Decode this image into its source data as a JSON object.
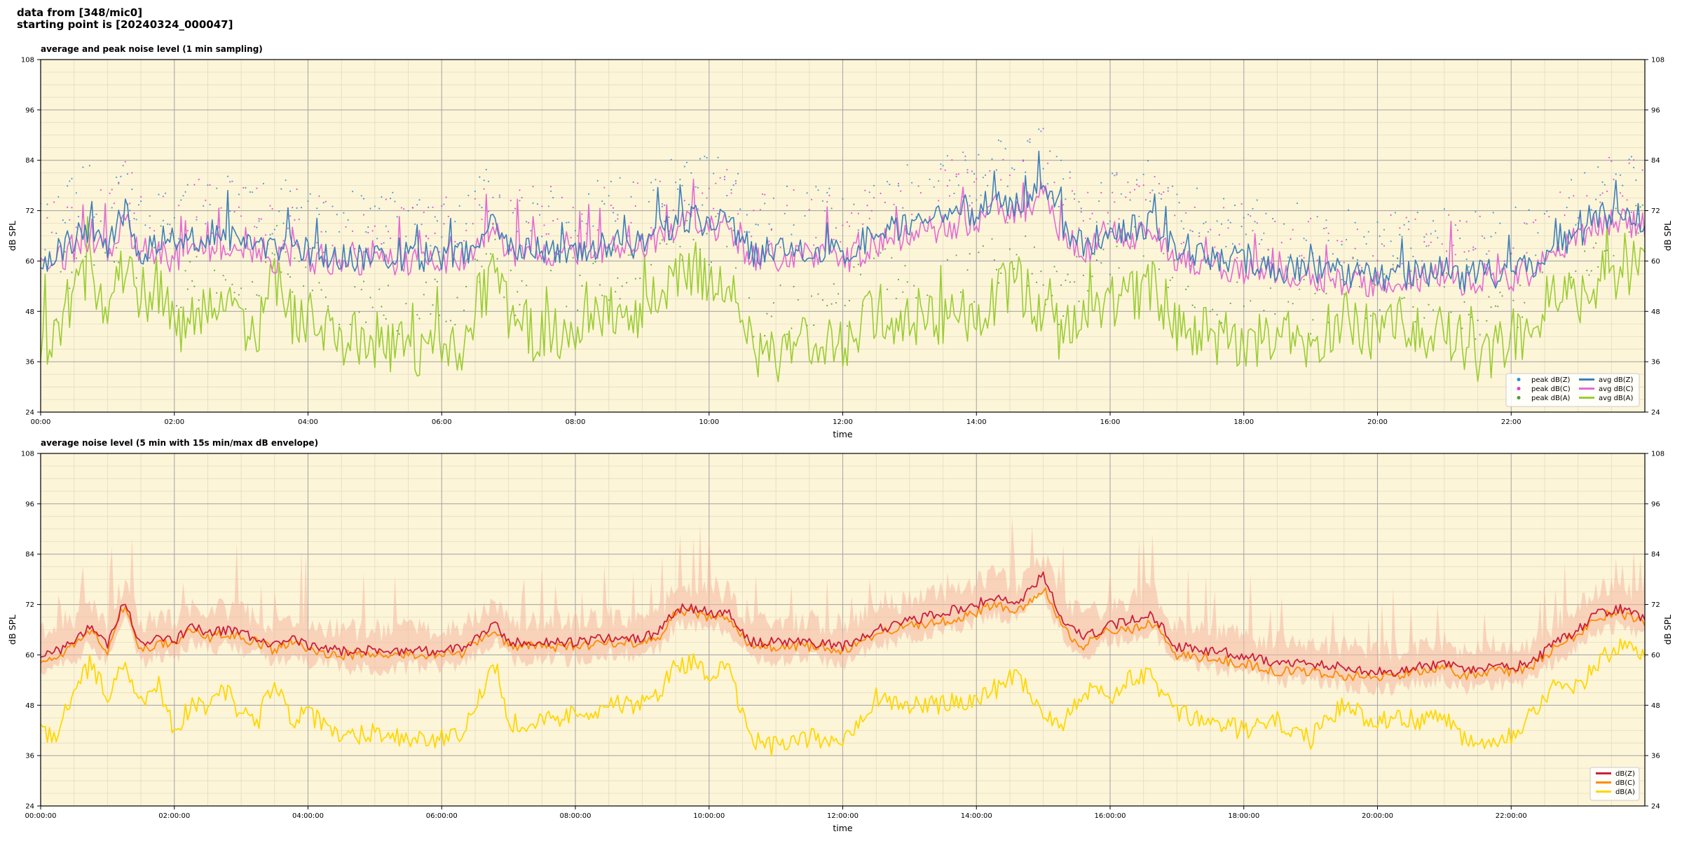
{
  "header": {
    "line1": "data from [348/mic0]",
    "line2": "starting point is [20240324_000047]"
  },
  "chart_data": [
    {
      "type": "line",
      "title": "average and peak noise level (1 min sampling)",
      "xlabel": "time",
      "ylabel": "dB SPL",
      "ylim": [
        24,
        108
      ],
      "xlim_hours": [
        0,
        24
      ],
      "yticks": [
        24,
        36,
        48,
        60,
        72,
        84,
        96,
        108
      ],
      "xticks": [
        "00:00",
        "02:00",
        "04:00",
        "06:00",
        "08:00",
        "10:00",
        "12:00",
        "14:00",
        "16:00",
        "18:00",
        "20:00",
        "22:00"
      ],
      "background": "#fdf5d8",
      "grid": true,
      "legend_position": "bottom-right",
      "legend": [
        {
          "label": "peak dB(Z)",
          "kind": "dot",
          "color": "#2b8fd6"
        },
        {
          "label": "peak dB(C)",
          "kind": "dot",
          "color": "#e23bd6"
        },
        {
          "label": "peak dB(A)",
          "kind": "dot",
          "color": "#4f9a3a"
        },
        {
          "label": "avg dB(Z)",
          "kind": "line",
          "color": "#3e7fb8"
        },
        {
          "label": "avg dB(C)",
          "kind": "line",
          "color": "#e36bd3"
        },
        {
          "label": "avg dB(A)",
          "kind": "line",
          "color": "#9acd32"
        }
      ],
      "series": [
        {
          "name": "avg dB(Z)",
          "color": "#3e7fb8",
          "x_hours": [
            0,
            0.25,
            0.5,
            0.75,
            1.0,
            1.25,
            1.5,
            1.75,
            2.0,
            2.25,
            2.5,
            2.75,
            3.0,
            3.25,
            3.5,
            3.75,
            4.0,
            4.5,
            5.0,
            5.5,
            6.0,
            6.3,
            6.6,
            6.8,
            7.0,
            7.5,
            8.0,
            8.5,
            9.0,
            9.3,
            9.5,
            9.8,
            10.0,
            10.3,
            10.6,
            11.0,
            11.5,
            12.0,
            12.5,
            13.0,
            13.5,
            14.0,
            14.3,
            14.6,
            15.0,
            15.3,
            15.6,
            16.0,
            16.3,
            16.6,
            17.0,
            17.5,
            18.0,
            18.5,
            19.0,
            19.5,
            20.0,
            20.3,
            20.6,
            21.0,
            21.3,
            21.6,
            22.0,
            22.3,
            22.6,
            23.0,
            23.3,
            23.6,
            24.0
          ],
          "values": [
            60,
            62,
            65,
            68,
            63,
            72,
            62,
            64,
            62,
            66,
            65,
            66,
            65,
            64,
            62,
            64,
            62,
            61,
            61,
            61,
            61,
            61.5,
            66,
            69,
            63,
            63,
            63,
            64,
            64,
            66,
            70,
            70,
            69,
            69,
            62,
            63,
            63,
            62,
            66,
            68,
            70,
            72,
            75,
            73,
            78,
            68,
            64,
            67,
            68,
            69,
            62,
            61,
            60,
            58,
            58,
            57,
            56,
            56,
            57,
            58,
            56,
            57,
            57,
            58,
            62,
            66,
            70,
            72,
            70
          ]
        },
        {
          "name": "avg dB(C)",
          "color": "#e36bd3",
          "x_hours": [
            0,
            0.25,
            0.5,
            0.75,
            1.0,
            1.25,
            1.5,
            1.75,
            2.0,
            2.25,
            2.5,
            2.75,
            3.0,
            3.25,
            3.5,
            3.75,
            4.0,
            4.5,
            5.0,
            5.5,
            6.0,
            6.3,
            6.6,
            6.8,
            7.0,
            7.5,
            8.0,
            8.5,
            9.0,
            9.3,
            9.5,
            9.8,
            10.0,
            10.3,
            10.6,
            11.0,
            11.5,
            12.0,
            12.5,
            13.0,
            13.5,
            14.0,
            14.3,
            14.6,
            15.0,
            15.3,
            15.6,
            16.0,
            16.3,
            16.6,
            17.0,
            17.5,
            18.0,
            18.5,
            19.0,
            19.5,
            20.0,
            20.3,
            20.6,
            21.0,
            21.3,
            21.6,
            22.0,
            22.3,
            22.6,
            23.0,
            23.3,
            23.6,
            24.0
          ],
          "values": [
            58,
            60,
            63,
            66,
            61,
            70,
            60,
            62,
            60,
            64,
            63,
            64,
            63,
            62,
            60,
            62,
            60,
            60,
            60,
            60,
            60,
            60.5,
            64,
            67,
            62,
            62,
            62,
            63,
            63,
            65,
            68,
            69,
            68,
            68,
            60,
            61,
            61,
            60,
            64,
            66,
            68,
            70,
            73,
            71,
            76,
            66,
            62,
            66,
            66,
            67,
            60,
            59,
            58,
            56,
            56,
            55,
            55,
            55,
            56,
            57,
            55,
            56,
            56,
            57,
            61,
            65,
            68,
            70,
            68
          ]
        },
        {
          "name": "avg dB(A)",
          "color": "#9acd32",
          "x_hours": [
            0,
            0.25,
            0.5,
            0.75,
            1.0,
            1.25,
            1.5,
            1.75,
            2.0,
            2.25,
            2.5,
            2.75,
            3.0,
            3.25,
            3.5,
            3.75,
            4.0,
            4.5,
            5.0,
            5.5,
            6.0,
            6.3,
            6.6,
            6.8,
            7.0,
            7.5,
            8.0,
            8.5,
            9.0,
            9.3,
            9.5,
            9.8,
            10.0,
            10.3,
            10.6,
            11.0,
            11.5,
            12.0,
            12.5,
            13.0,
            13.5,
            14.0,
            14.3,
            14.6,
            15.0,
            15.3,
            15.6,
            16.0,
            16.3,
            16.6,
            17.0,
            17.5,
            18.0,
            18.5,
            19.0,
            19.5,
            20.0,
            20.3,
            20.6,
            21.0,
            21.3,
            21.6,
            22.0,
            22.3,
            22.6,
            23.0,
            23.3,
            23.6,
            24.0
          ],
          "values": [
            42,
            40,
            55,
            58,
            48,
            60,
            50,
            55,
            42,
            46,
            48,
            52,
            44,
            42,
            56,
            46,
            48,
            40,
            40,
            39,
            40,
            40,
            52,
            58,
            44,
            42,
            45,
            48,
            48,
            52,
            58,
            58,
            56,
            56,
            40,
            38,
            40,
            40,
            48,
            44,
            46,
            48,
            52,
            56,
            46,
            42,
            48,
            50,
            52,
            54,
            44,
            42,
            40,
            44,
            40,
            46,
            42,
            46,
            42,
            44,
            38,
            38,
            40,
            44,
            52,
            50,
            56,
            58,
            60
          ]
        }
      ]
    },
    {
      "type": "line",
      "title": "average noise level (5 min with 15s min/max dB envelope)",
      "xlabel": "time",
      "ylabel": "dB SPL",
      "ylim": [
        24,
        108
      ],
      "xlim_hours": [
        0,
        24
      ],
      "yticks": [
        24,
        36,
        48,
        60,
        72,
        84,
        96,
        108
      ],
      "xticks": [
        "00:00:00",
        "02:00:00",
        "04:00:00",
        "06:00:00",
        "08:00:00",
        "10:00:00",
        "12:00:00",
        "14:00:00",
        "16:00:00",
        "18:00:00",
        "20:00:00",
        "22:00:00"
      ],
      "background": "#fdf5d8",
      "grid": true,
      "legend_position": "bottom-right",
      "legend": [
        {
          "label": "dB(Z)",
          "kind": "line",
          "color": "#cc1f3a"
        },
        {
          "label": "dB(C)",
          "kind": "line",
          "color": "#ff8c00"
        },
        {
          "label": "dB(A)",
          "kind": "line",
          "color": "#ffd700"
        }
      ],
      "series": [
        {
          "name": "dB(Z)",
          "color": "#cc1f3a",
          "x_hours": [
            0,
            0.25,
            0.5,
            0.75,
            1.0,
            1.25,
            1.5,
            1.75,
            2.0,
            2.25,
            2.5,
            2.75,
            3.0,
            3.25,
            3.5,
            3.75,
            4.0,
            4.5,
            5.0,
            5.5,
            6.0,
            6.3,
            6.6,
            6.8,
            7.0,
            7.5,
            8.0,
            8.5,
            9.0,
            9.3,
            9.5,
            9.8,
            10.0,
            10.3,
            10.6,
            11.0,
            11.5,
            12.0,
            12.5,
            13.0,
            13.5,
            14.0,
            14.3,
            14.6,
            15.0,
            15.3,
            15.6,
            16.0,
            16.3,
            16.6,
            17.0,
            17.5,
            18.0,
            18.5,
            19.0,
            19.5,
            20.0,
            20.3,
            20.6,
            21.0,
            21.3,
            21.6,
            22.0,
            22.3,
            22.6,
            23.0,
            23.3,
            23.6,
            24.0
          ],
          "values": [
            60,
            61,
            63,
            67,
            62,
            73,
            62,
            64,
            63,
            67,
            65,
            66,
            65,
            64,
            62,
            64,
            62,
            61,
            61,
            61,
            61,
            61.5,
            65,
            67,
            63,
            63,
            63,
            64,
            64,
            66,
            71,
            71,
            70,
            70,
            63,
            63,
            63,
            62,
            66,
            68,
            70,
            72,
            74,
            72,
            79,
            68,
            64,
            67,
            68,
            70,
            62,
            61,
            60,
            58,
            58,
            57,
            56,
            56,
            57,
            58,
            56,
            57,
            57,
            58,
            62,
            66,
            70,
            71,
            69
          ]
        },
        {
          "name": "dB(C)",
          "color": "#ff8c00",
          "x_hours": [
            0,
            0.25,
            0.5,
            0.75,
            1.0,
            1.25,
            1.5,
            1.75,
            2.0,
            2.25,
            2.5,
            2.75,
            3.0,
            3.25,
            3.5,
            3.75,
            4.0,
            4.5,
            5.0,
            5.5,
            6.0,
            6.3,
            6.6,
            6.8,
            7.0,
            7.5,
            8.0,
            8.5,
            9.0,
            9.3,
            9.5,
            9.8,
            10.0,
            10.3,
            10.6,
            11.0,
            11.5,
            12.0,
            12.5,
            13.0,
            13.5,
            14.0,
            14.3,
            14.6,
            15.0,
            15.3,
            15.6,
            16.0,
            16.3,
            16.6,
            17.0,
            17.5,
            18.0,
            18.5,
            19.0,
            19.5,
            20.0,
            20.3,
            20.6,
            21.0,
            21.3,
            21.6,
            22.0,
            22.3,
            22.6,
            23.0,
            23.3,
            23.6,
            24.0
          ],
          "values": [
            59,
            60,
            62,
            66,
            61,
            72,
            61,
            63,
            62,
            66,
            64,
            65,
            64,
            63,
            61,
            63,
            61,
            60,
            60,
            60,
            60,
            60.5,
            64,
            66,
            62,
            62,
            62,
            63,
            63,
            65,
            70,
            70,
            69,
            69,
            62,
            62,
            62,
            61,
            65,
            67,
            68,
            70,
            72,
            70,
            76,
            66,
            62,
            66,
            66,
            68,
            60,
            59,
            58,
            56,
            56,
            55,
            55,
            55,
            56,
            57,
            55,
            56,
            56,
            57,
            61,
            65,
            69,
            70,
            68
          ]
        },
        {
          "name": "dB(A)",
          "color": "#ffd700",
          "x_hours": [
            0,
            0.25,
            0.5,
            0.75,
            1.0,
            1.25,
            1.5,
            1.75,
            2.0,
            2.25,
            2.5,
            2.75,
            3.0,
            3.25,
            3.5,
            3.75,
            4.0,
            4.5,
            5.0,
            5.5,
            6.0,
            6.3,
            6.6,
            6.8,
            7.0,
            7.5,
            8.0,
            8.5,
            9.0,
            9.3,
            9.5,
            9.8,
            10.0,
            10.3,
            10.6,
            11.0,
            11.5,
            12.0,
            12.5,
            13.0,
            13.5,
            14.0,
            14.3,
            14.6,
            15.0,
            15.3,
            15.6,
            16.0,
            16.3,
            16.6,
            17.0,
            17.5,
            18.0,
            18.5,
            19.0,
            19.5,
            20.0,
            20.3,
            20.6,
            21.0,
            21.3,
            21.6,
            22.0,
            22.3,
            22.6,
            23.0,
            23.3,
            23.6,
            24.0
          ],
          "values": [
            42,
            41,
            52,
            58,
            50,
            58,
            48,
            54,
            42,
            48,
            48,
            52,
            46,
            44,
            55,
            44,
            46,
            40,
            42,
            40,
            40,
            40,
            52,
            58,
            44,
            44,
            46,
            48,
            48,
            52,
            58,
            58,
            56,
            56,
            40,
            38,
            40,
            40,
            50,
            48,
            48,
            50,
            52,
            56,
            46,
            44,
            52,
            50,
            54,
            55,
            46,
            44,
            42,
            44,
            40,
            48,
            44,
            46,
            44,
            46,
            40,
            40,
            41,
            46,
            52,
            52,
            58,
            62,
            60
          ]
        }
      ]
    }
  ]
}
